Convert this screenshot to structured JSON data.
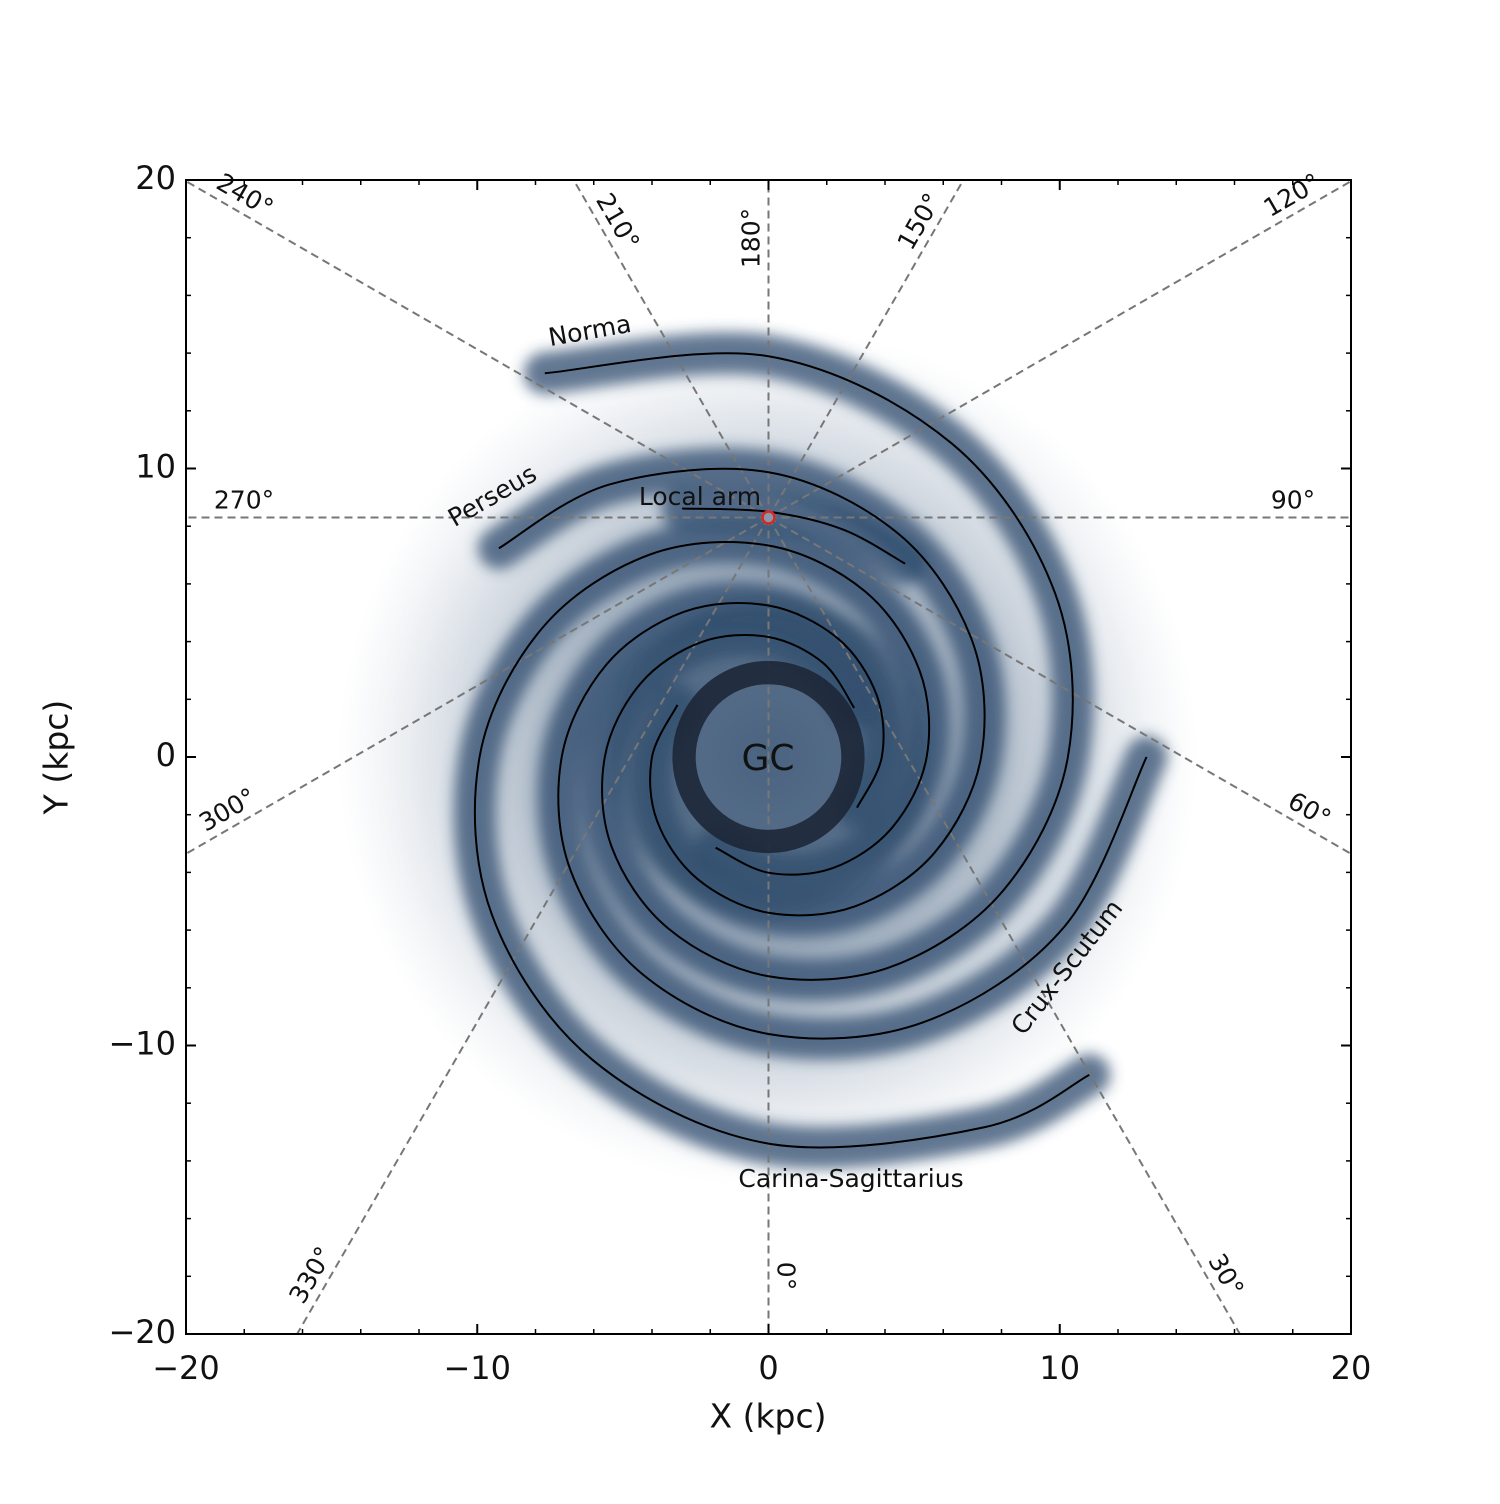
{
  "chart_data": {
    "type": "galaxy-map",
    "xlabel": "X (kpc)",
    "ylabel": "Y (kpc)",
    "xlim": [
      -20,
      20
    ],
    "ylim": [
      -20,
      20
    ],
    "xticks": [
      {
        "value": -20,
        "label": "−20"
      },
      {
        "value": -10,
        "label": "−10"
      },
      0,
      10,
      20
    ],
    "yticks": [
      {
        "value": -20,
        "label": "−20"
      },
      {
        "value": -10,
        "label": "−10"
      },
      0,
      10,
      20
    ],
    "minor_ticks": [
      -18,
      -16,
      -14,
      -12,
      -8,
      -6,
      -4,
      -2,
      2,
      4,
      6,
      8,
      12,
      14,
      16,
      18
    ],
    "center_label": "GC",
    "central_ring": {
      "r": 2.9,
      "width": 0.8
    },
    "sun": {
      "x": 0,
      "y": 8.3,
      "color": "#d62728"
    },
    "longitudes": [
      {
        "value": 0,
        "label": "0°"
      },
      {
        "value": 30,
        "label": "30°"
      },
      {
        "value": 60,
        "label": "60°"
      },
      {
        "value": 90,
        "label": "90°"
      },
      {
        "value": 120,
        "label": "120°"
      },
      {
        "value": 150,
        "label": "150°"
      },
      {
        "value": 180,
        "label": "180°"
      },
      {
        "value": 210,
        "label": "210°"
      },
      {
        "value": 240,
        "label": "240°"
      },
      {
        "value": 270,
        "label": "270°"
      },
      {
        "value": 300,
        "label": "300°"
      },
      {
        "value": 330,
        "label": "330°"
      }
    ],
    "arm_color": "#000000",
    "density_color": "#2f4b6c",
    "arms": [
      {
        "name": "Norma",
        "phi": [
          -330,
          -300,
          -270,
          -240,
          -210,
          -180,
          -150,
          -120,
          -90,
          -60,
          -30,
          0,
          30,
          60,
          90,
          120
        ],
        "r": [
          3.4,
          3.76,
          4.16,
          4.6,
          5.08,
          5.62,
          6.22,
          6.87,
          7.6,
          8.4,
          9.29,
          10.28,
          11.36,
          12.56,
          13.89,
          15.36
        ]
      },
      {
        "name": "Perseus",
        "phi": [
          -210,
          -180,
          -150,
          -120,
          -90,
          -60,
          -30,
          0,
          30,
          60,
          90,
          120,
          142
        ],
        "r": [
          3.61,
          4.0,
          4.42,
          4.88,
          5.4,
          5.97,
          6.6,
          7.3,
          8.07,
          8.93,
          9.87,
          10.91,
          11.75
        ]
      },
      {
        "name": "Local arm",
        "phi": [
          109,
          90,
          72,
          55
        ],
        "r": [
          9.11,
          8.5,
          8.29,
          8.18
        ]
      },
      {
        "name": "Crux-Scutum",
        "phi": [
          -390,
          -360,
          -330,
          -300,
          -270,
          -240,
          -210,
          -180,
          -150,
          -120,
          -90,
          -60,
          -30,
          0
        ],
        "r": [
          3.51,
          3.89,
          4.29,
          4.75,
          5.25,
          5.81,
          6.42,
          7.1,
          7.85,
          8.68,
          9.6,
          10.62,
          11.74,
          12.98
        ]
      },
      {
        "name": "Carina-Sagittarius",
        "phi": [
          -480,
          -450,
          -420,
          -390,
          -360,
          -330,
          -300,
          -270,
          -240,
          -210,
          -180,
          -150,
          -120,
          -90,
          -60,
          -45
        ],
        "r": [
          3.63,
          4.01,
          4.44,
          4.9,
          5.43,
          5.99,
          6.63,
          7.33,
          8.11,
          8.96,
          9.92,
          10.96,
          12.11,
          13.4,
          14.82,
          15.58
        ]
      }
    ]
  }
}
